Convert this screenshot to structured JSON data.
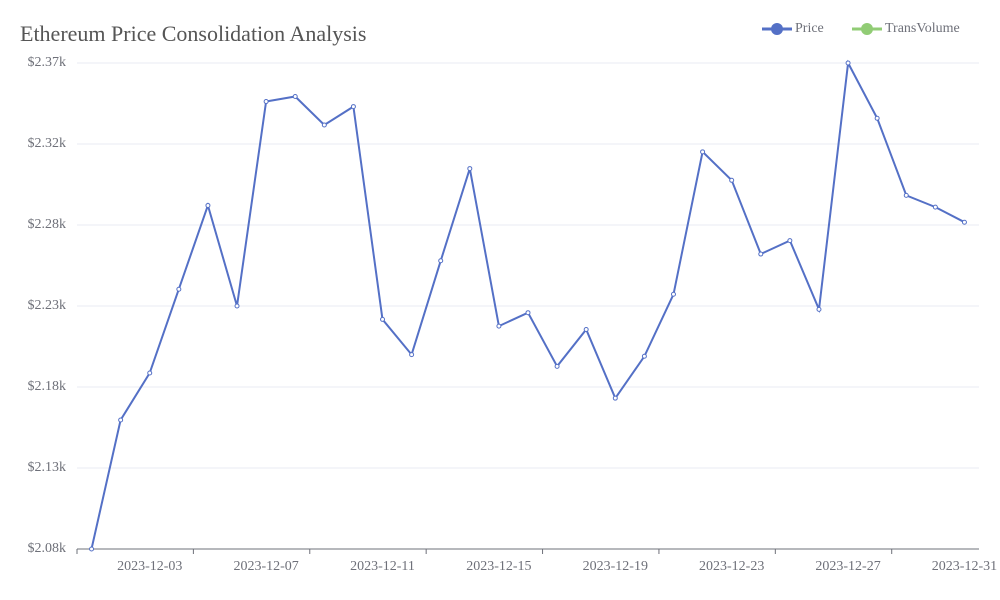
{
  "chart_data": {
    "type": "line",
    "title": "Ethereum Price Consolidation Analysis",
    "categories": [
      null,
      null,
      "2023-12-03",
      null,
      null,
      null,
      "2023-12-07",
      null,
      null,
      null,
      "2023-12-11",
      null,
      null,
      null,
      "2023-12-15",
      null,
      null,
      null,
      "2023-12-19",
      null,
      null,
      null,
      "2023-12-23",
      null,
      null,
      null,
      "2023-12-27",
      null,
      null,
      null,
      "2023-12-31"
    ],
    "series": [
      {
        "name": "Price",
        "color": "#5470c6",
        "values": [
          2080,
          2157,
          2185,
          2235,
          2285,
          2225,
          2347,
          2350,
          2333,
          2344,
          2217,
          2196,
          2252,
          2307,
          2213,
          2221,
          2189,
          2211,
          2170,
          2195,
          2232,
          2317,
          2300,
          2256,
          2264,
          2223,
          2370,
          2337,
          2291,
          2284,
          2275
        ]
      },
      {
        "name": "TransVolume",
        "color": "#91cc75",
        "values": [
          null,
          null,
          null,
          null,
          null,
          null,
          null,
          null,
          null,
          null,
          null,
          null,
          null,
          null,
          null,
          null,
          null,
          null,
          null,
          null,
          null,
          null,
          null,
          null,
          null,
          null,
          null,
          null,
          null,
          null,
          null
        ]
      }
    ],
    "ylim": [
      2080,
      2370
    ],
    "yticks": [
      {
        "value": 2080,
        "label": "$2.08k"
      },
      {
        "value": 2128.33,
        "label": "$2.13k"
      },
      {
        "value": 2176.67,
        "label": "$2.18k"
      },
      {
        "value": 2225,
        "label": "$2.23k"
      },
      {
        "value": 2273.33,
        "label": "$2.28k"
      },
      {
        "value": 2321.67,
        "label": "$2.32k"
      },
      {
        "value": 2370,
        "label": "$2.37k"
      }
    ],
    "grid": true,
    "legend": "top-right"
  }
}
